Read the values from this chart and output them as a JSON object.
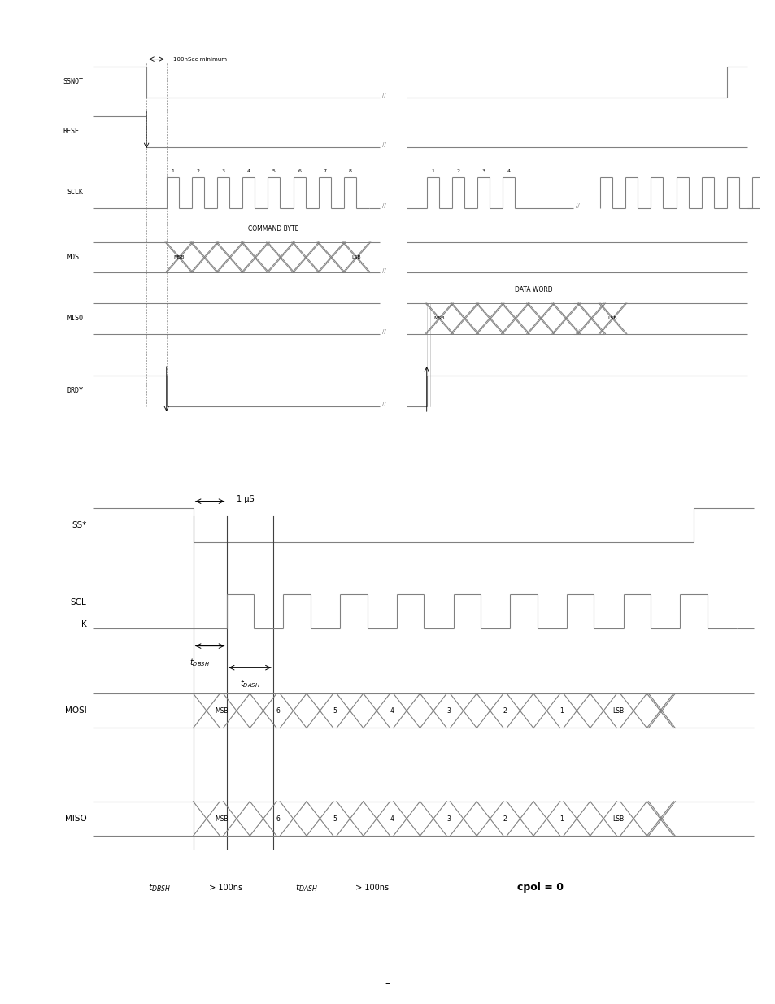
{
  "fig_width": 9.54,
  "fig_height": 12.35,
  "bg_color": "#ffffff",
  "line_color": "#808080",
  "text_color": "#000000",
  "fig1": {
    "annotation_100ns": "100nSec minimum",
    "signals": [
      "SSNOT",
      "RESET",
      "SCLK",
      "MOSI",
      "MISO",
      "DRDY"
    ]
  },
  "fig2": {
    "annotation_1us": "1 μS",
    "data_labels": [
      "MSB",
      "6",
      "5",
      "4",
      "3",
      "2",
      "1",
      "LSB"
    ],
    "bottom_text1": "t",
    "bottom_sub1": "DBSH",
    "bottom_cond1": " > 100ns",
    "bottom_text2": "t",
    "bottom_sub2": "DASH",
    "bottom_cond2": " > 100ns",
    "bottom_text3": "cpol = 0"
  }
}
